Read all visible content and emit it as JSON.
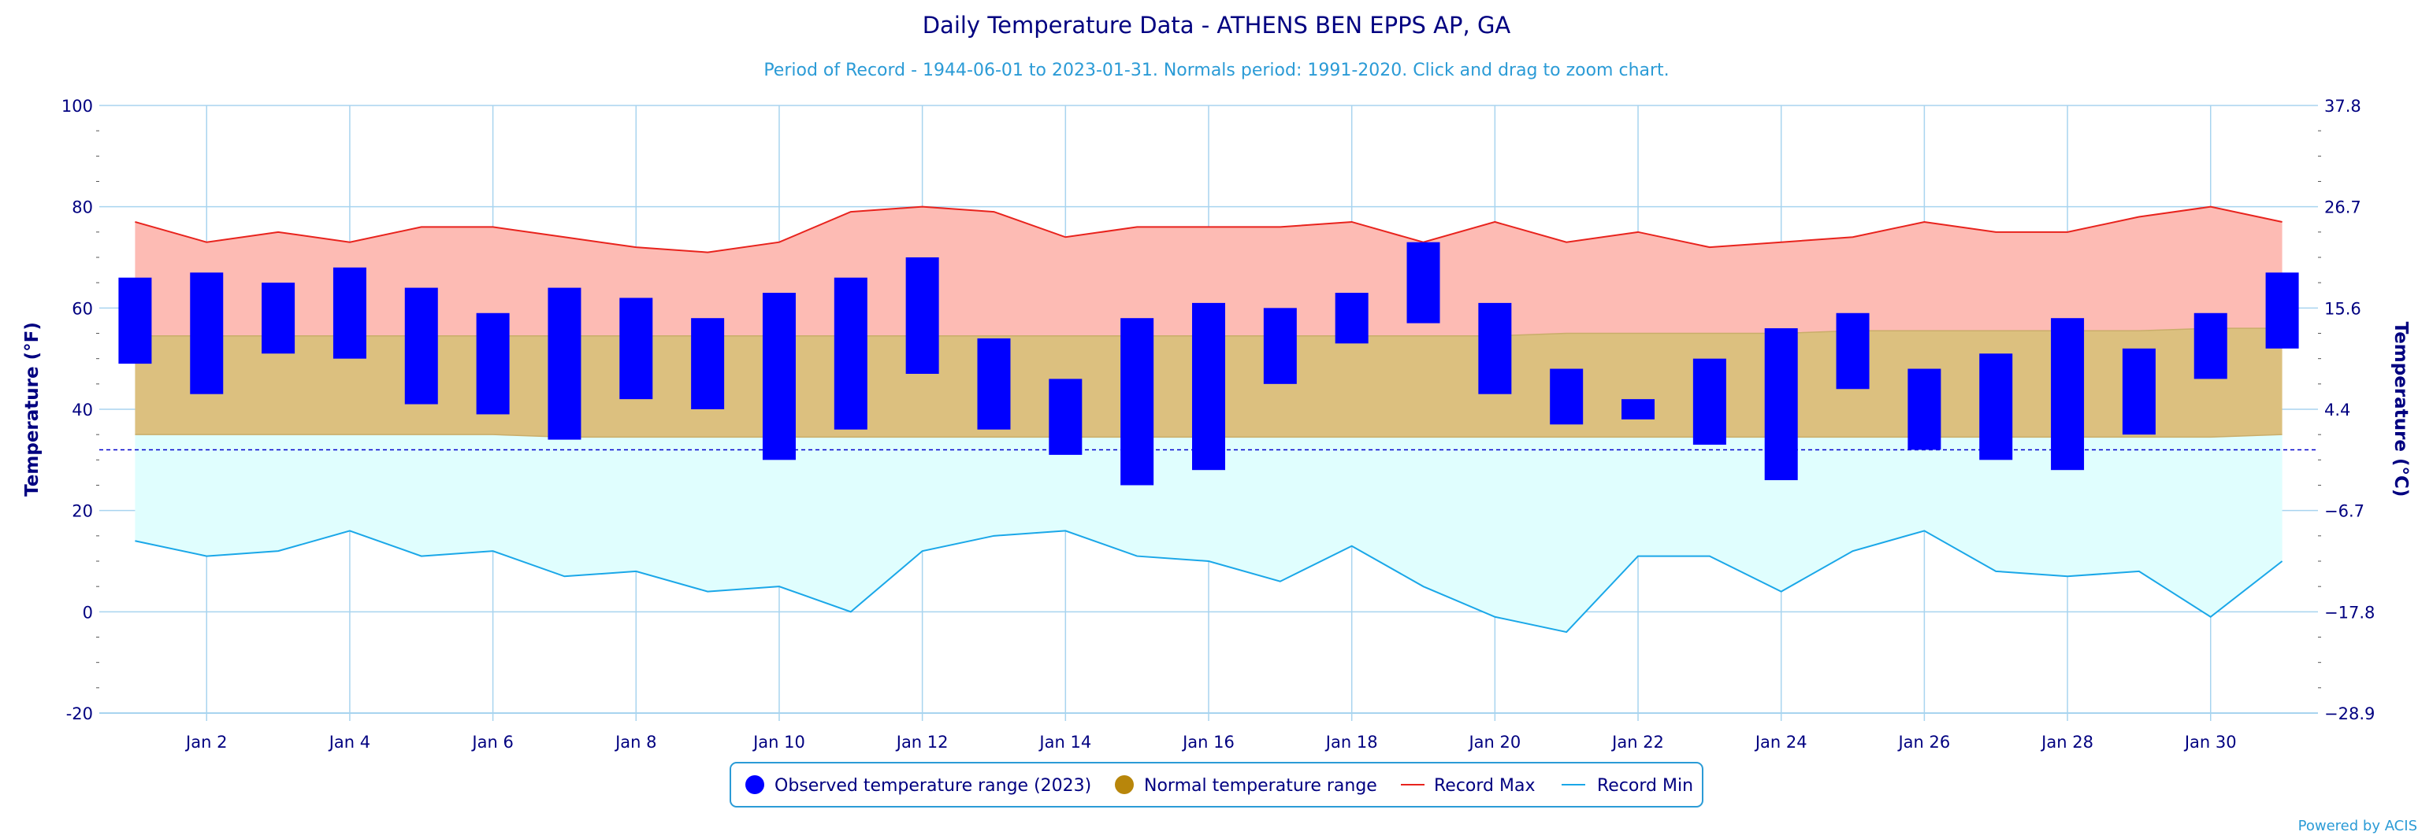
{
  "colors": {
    "title": "#000080",
    "subtitle": "#2b9bd6",
    "axis_text": "#000080",
    "grid": "#a8d4ef",
    "observed": "#0000ff",
    "normal_band": "#dcc07f",
    "normal_legend": "#b8860b",
    "record_max_fill": "#fdbbb4",
    "record_max_line": "#e8231d",
    "record_min_fill": "#e0fefe",
    "record_min_line": "#1aa7e8",
    "freezing_line": "#0000cc",
    "credit": "#2b9bd6"
  },
  "legend": {
    "observed": "Observed temperature range (2023)",
    "normal": "Normal temperature range",
    "record_max": "Record Max",
    "record_min": "Record Min"
  },
  "credit": "Powered by ACIS",
  "chart_data": {
    "type": "bar",
    "title": "Daily Temperature Data - ATHENS BEN EPPS AP, GA",
    "subtitle": "Period of Record - 1944-06-01 to 2023-01-31. Normals period: 1991-2020. Click and drag to zoom chart.",
    "ylabel": "Temperature (°F)",
    "ylabel_right": "Temperature (°C)",
    "ylim": [
      -20,
      100
    ],
    "yticks": [
      -20,
      0,
      20,
      40,
      60,
      80,
      100
    ],
    "yticks_right": [
      "−28.9",
      "−17.8",
      "−6.7",
      "4.4",
      "15.6",
      "26.7",
      "37.8"
    ],
    "freezing_line": 32,
    "x": [
      1,
      2,
      3,
      4,
      5,
      6,
      7,
      8,
      9,
      10,
      11,
      12,
      13,
      14,
      15,
      16,
      17,
      18,
      19,
      20,
      21,
      22,
      23,
      24,
      25,
      26,
      27,
      28,
      29,
      30,
      31
    ],
    "xtick_labels": [
      "Jan 2",
      "Jan 4",
      "Jan 6",
      "Jan 8",
      "Jan 10",
      "Jan 12",
      "Jan 14",
      "Jan 16",
      "Jan 18",
      "Jan 20",
      "Jan 22",
      "Jan 24",
      "Jan 26",
      "Jan 28",
      "Jan 30"
    ],
    "grid": true,
    "legend_position": "bottom-center",
    "series": [
      {
        "name": "Observed temperature range (2023)",
        "low": [
          49,
          43,
          51,
          50,
          41,
          39,
          34,
          42,
          40,
          30,
          36,
          47,
          36,
          31,
          25,
          28,
          45,
          53,
          57,
          43,
          37,
          38,
          33,
          26,
          44,
          32,
          30,
          28,
          35,
          46,
          52
        ],
        "high": [
          66,
          67,
          65,
          68,
          64,
          59,
          64,
          62,
          58,
          63,
          66,
          70,
          54,
          46,
          58,
          61,
          60,
          63,
          73,
          61,
          48,
          42,
          50,
          56,
          59,
          48,
          51,
          58,
          52,
          59,
          67
        ]
      },
      {
        "name": "Normal temperature range",
        "low": [
          35,
          35,
          35,
          35,
          35,
          35,
          34.5,
          34.5,
          34.5,
          34.5,
          34.5,
          34.5,
          34.5,
          34.5,
          34.5,
          34.5,
          34.5,
          34.5,
          34.5,
          34.5,
          34.5,
          34.5,
          34.5,
          34.5,
          34.5,
          34.5,
          34.5,
          34.5,
          34.5,
          34.5,
          35
        ],
        "high": [
          54.5,
          54.5,
          54.5,
          54.5,
          54.5,
          54.5,
          54.5,
          54.5,
          54.5,
          54.5,
          54.5,
          54.5,
          54.5,
          54.5,
          54.5,
          54.5,
          54.5,
          54.5,
          54.5,
          54.5,
          55,
          55,
          55,
          55,
          55.5,
          55.5,
          55.5,
          55.5,
          55.5,
          56,
          56
        ]
      },
      {
        "name": "Record Max",
        "values": [
          77,
          73,
          75,
          73,
          76,
          76,
          74,
          72,
          71,
          73,
          79,
          80,
          79,
          74,
          76,
          76,
          76,
          77,
          73,
          77,
          73,
          75,
          72,
          73,
          74,
          77,
          75,
          75,
          78,
          80,
          77
        ]
      },
      {
        "name": "Record Min",
        "values": [
          14,
          11,
          12,
          16,
          11,
          12,
          7,
          8,
          4,
          5,
          0,
          12,
          15,
          16,
          11,
          10,
          6,
          13,
          5,
          -1,
          -4,
          11,
          11,
          4,
          12,
          16,
          8,
          7,
          8,
          -1,
          10
        ]
      }
    ]
  }
}
